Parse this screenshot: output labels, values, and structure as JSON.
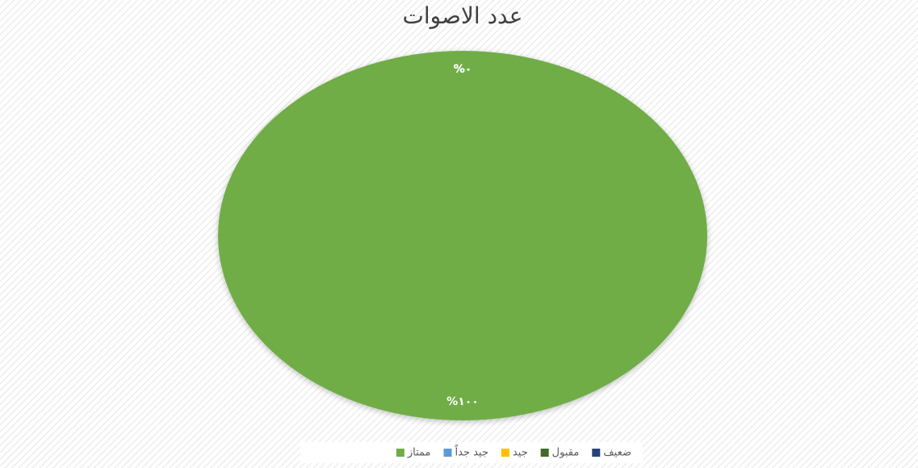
{
  "chart_data": {
    "type": "pie",
    "title": "عدد الاصوات",
    "categories": [
      "ضعيف",
      "مقبول",
      "جيد",
      "جيد جداً",
      "ممتاز"
    ],
    "values": [
      0,
      0,
      0,
      0,
      100
    ],
    "value_labels": [
      "%٠",
      "%٠",
      "%٠",
      "%٠",
      "%١٠٠"
    ],
    "colors": [
      "#264478",
      "#43682b",
      "#ffc000",
      "#5b9bd5",
      "#70ad47"
    ],
    "legend": "bottom"
  }
}
